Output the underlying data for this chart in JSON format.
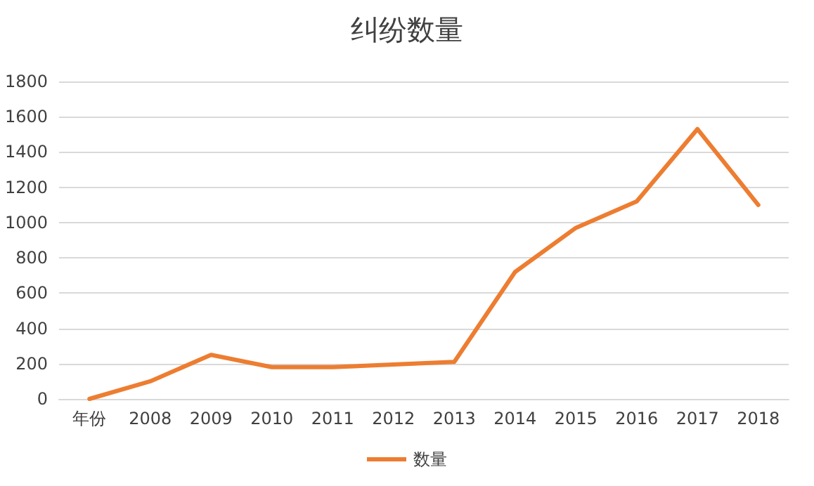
{
  "chart_data": {
    "type": "line",
    "title": "纠纷数量",
    "categories": [
      "年份",
      "2008",
      "2009",
      "2010",
      "2011",
      "2012",
      "2013",
      "2014",
      "2015",
      "2016",
      "2017",
      "2018"
    ],
    "series": [
      {
        "name": "数量",
        "color": "#ed7d31",
        "values": [
          0,
          100,
          250,
          180,
          180,
          195,
          210,
          720,
          970,
          1120,
          1530,
          1100
        ]
      }
    ],
    "ylim": [
      0,
      1800
    ],
    "yticks": [
      0,
      200,
      400,
      600,
      800,
      1000,
      1200,
      1400,
      1600,
      1800
    ],
    "grid": "y",
    "legend": "bottom",
    "marker": "none",
    "line_style": "solid"
  }
}
